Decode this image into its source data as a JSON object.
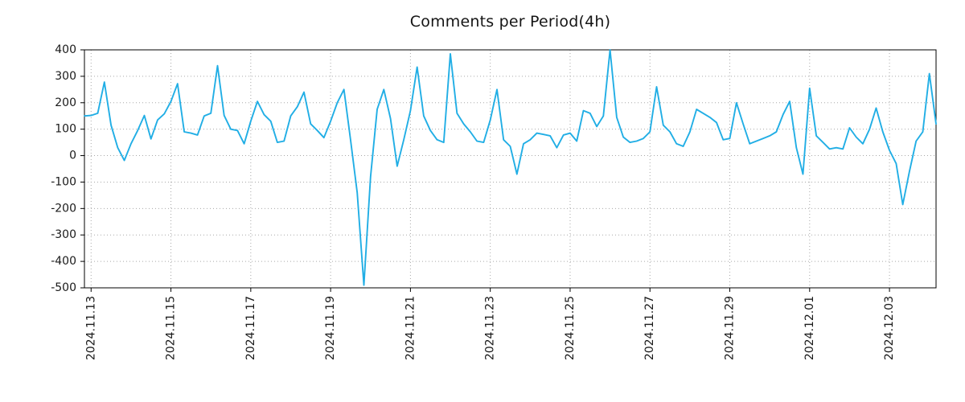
{
  "chart_data": {
    "type": "line",
    "title": "Comments per Period(4h)",
    "xlabel": "",
    "ylabel": "",
    "grid": true,
    "legend_position": "none",
    "line_color": "#21aee5",
    "ylim": [
      -500,
      400
    ],
    "ytick_values": [
      400,
      300,
      200,
      100,
      0,
      -100,
      -200,
      -300,
      -400,
      -500
    ],
    "xtick_labels": [
      "2024.11.13",
      "2024.11.15",
      "2024.11.17",
      "2024.11.19",
      "2024.11.21",
      "2024.11.23",
      "2024.11.25",
      "2024.11.27",
      "2024.11.29",
      "2024.12.01",
      "2024.12.03"
    ],
    "x_start": "2024-11-12 20:00",
    "interval_hours": 4,
    "xtick_first_offset_hours": 4,
    "xtick_step_hours": 48,
    "values": [
      150,
      152,
      160,
      278,
      115,
      30,
      -18,
      45,
      95,
      152,
      63,
      135,
      158,
      205,
      272,
      90,
      85,
      78,
      150,
      160,
      340,
      152,
      100,
      95,
      45,
      130,
      205,
      155,
      130,
      50,
      55,
      150,
      185,
      240,
      120,
      95,
      68,
      130,
      200,
      250,
      60,
      -140,
      -490,
      -80,
      175,
      250,
      140,
      -40,
      60,
      170,
      335,
      150,
      95,
      60,
      50,
      385,
      160,
      120,
      90,
      55,
      50,
      135,
      250,
      60,
      35,
      -70,
      45,
      60,
      85,
      80,
      75,
      30,
      78,
      85,
      55,
      170,
      160,
      110,
      150,
      400,
      145,
      70,
      50,
      55,
      65,
      90,
      260,
      115,
      90,
      45,
      35,
      90,
      175,
      160,
      145,
      125,
      60,
      65,
      200,
      120,
      45,
      55,
      65,
      75,
      90,
      155,
      205,
      30,
      -70,
      255,
      75,
      50,
      25,
      30,
      25,
      105,
      70,
      45,
      100,
      180,
      90,
      20,
      -30,
      -185,
      -60,
      55,
      90,
      310,
      120
    ]
  }
}
